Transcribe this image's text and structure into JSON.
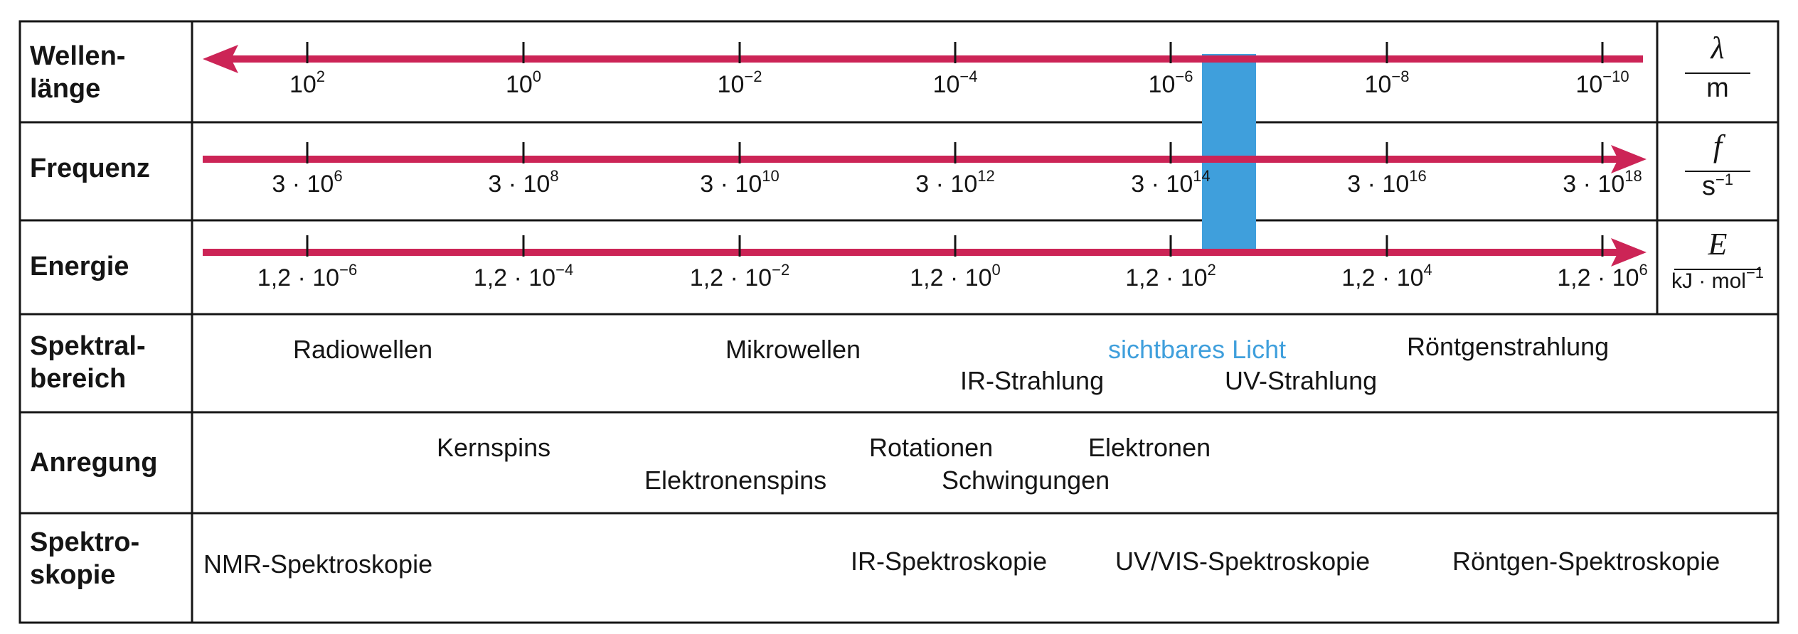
{
  "rows": {
    "wavelength": {
      "label_1": "Wellen-",
      "label_2": "länge",
      "unit_top": "λ",
      "unit_bottom": "m",
      "ticks": [
        {
          "base": "10",
          "exp": "2"
        },
        {
          "base": "10",
          "exp": "0"
        },
        {
          "base": "10",
          "exp": "−2"
        },
        {
          "base": "10",
          "exp": "−4"
        },
        {
          "base": "10",
          "exp": "−6"
        },
        {
          "base": "10",
          "exp": "−8"
        },
        {
          "base": "10",
          "exp": "−10"
        }
      ]
    },
    "frequency": {
      "label_1": "Frequenz",
      "unit_top": "f",
      "unit_bottom_base": "s",
      "unit_bottom_exp": "−1",
      "ticks": [
        {
          "base": "3 · 10",
          "exp": "6"
        },
        {
          "base": "3 · 10",
          "exp": "8"
        },
        {
          "base": "3 · 10",
          "exp": "10"
        },
        {
          "base": "3 · 10",
          "exp": "12"
        },
        {
          "base": "3 · 10",
          "exp": "14"
        },
        {
          "base": "3 · 10",
          "exp": "16"
        },
        {
          "base": "3 · 10",
          "exp": "18"
        }
      ]
    },
    "energy": {
      "label_1": "Energie",
      "unit_top": "E",
      "unit_bottom_base": "kJ · mol",
      "unit_bottom_exp": "−1",
      "ticks": [
        {
          "base": "1,2 · 10",
          "exp": "−6"
        },
        {
          "base": "1,2 · 10",
          "exp": "−4"
        },
        {
          "base": "1,2 · 10",
          "exp": "−2"
        },
        {
          "base": "1,2 · 10",
          "exp": "0"
        },
        {
          "base": "1,2 · 10",
          "exp": "2"
        },
        {
          "base": "1,2 · 10",
          "exp": "4"
        },
        {
          "base": "1,2 · 10",
          "exp": "6"
        }
      ]
    },
    "spectral_range": {
      "label_1": "Spektral-",
      "label_2": "bereich",
      "radio": "Radiowellen",
      "micro": "Mikrowellen",
      "visible": "sichtbares Licht",
      "xray": "Röntgenstrahlung",
      "ir": "IR-Strahlung",
      "uv": "UV-Strahlung"
    },
    "excitation": {
      "label_1": "Anregung",
      "nuclear_spins": "Kernspins",
      "rotations": "Rotationen",
      "electrons": "Elektronen",
      "electron_spins": "Elektronenspins",
      "vibrations": "Schwingungen"
    },
    "spectroscopy": {
      "label_1": "Spektro-",
      "label_2": "skopie",
      "nmr": "NMR-Spektroskopie",
      "ir": "IR-Spektroskopie",
      "uvvis": "UV/VIS-Spektroskopie",
      "xray": "Röntgen-Spektroskopie"
    }
  },
  "colors": {
    "arrow": "#cc2456",
    "visible_band": "#3f9fdc",
    "visible_text": "#3f9fdc",
    "lines": "#151515"
  }
}
